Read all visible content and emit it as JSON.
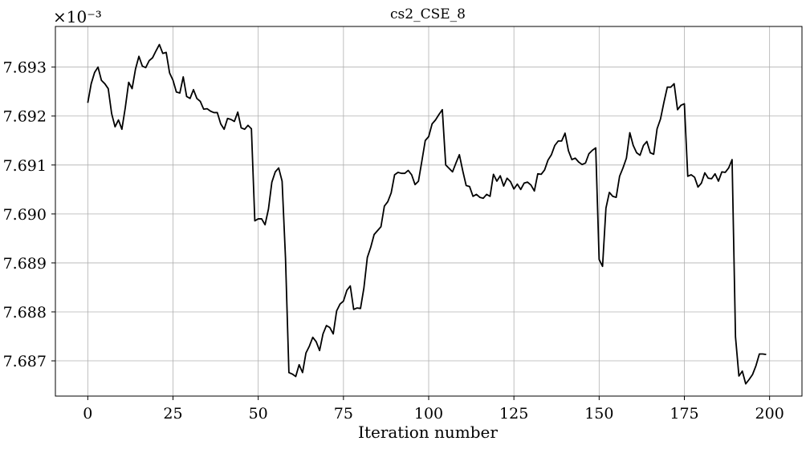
{
  "chart_data": {
    "type": "line",
    "title": "cs2_CSE_8",
    "xlabel": "Iteration number",
    "ylabel": "",
    "y_scale_label": "×10⁻³",
    "xlim": [
      -9.5,
      209.5
    ],
    "ylim": [
      7.68628,
      7.69383
    ],
    "xticks": [
      0,
      25,
      50,
      75,
      100,
      125,
      150,
      175,
      200
    ],
    "xtick_labels": [
      "0",
      "25",
      "50",
      "75",
      "100",
      "125",
      "150",
      "175",
      "200"
    ],
    "yticks": [
      7.687,
      7.688,
      7.689,
      7.69,
      7.691,
      7.692,
      7.693
    ],
    "ytick_labels": [
      "7.687",
      "7.688",
      "7.689",
      "7.690",
      "7.691",
      "7.692",
      "7.693"
    ],
    "grid": true,
    "series": [
      {
        "color": "#000000",
        "x_start": 0,
        "x_step": 1,
        "values": [
          7.69227,
          7.69266,
          7.69289,
          7.693,
          7.69273,
          7.69266,
          7.69256,
          7.69205,
          7.69178,
          7.69192,
          7.69173,
          7.69217,
          7.69269,
          7.69256,
          7.69296,
          7.69322,
          7.69302,
          7.69299,
          7.69313,
          7.69319,
          7.69333,
          7.69346,
          7.69328,
          7.6933,
          7.69288,
          7.69273,
          7.69249,
          7.69247,
          7.6928,
          7.6924,
          7.69236,
          7.69254,
          7.69236,
          7.6923,
          7.69214,
          7.69215,
          7.6921,
          7.69207,
          7.69207,
          7.69184,
          7.69173,
          7.69195,
          7.69193,
          7.69189,
          7.69208,
          7.69176,
          7.69173,
          7.69181,
          7.69174,
          7.68986,
          7.6899,
          7.6899,
          7.68978,
          7.6901,
          7.69065,
          7.69086,
          7.69094,
          7.69067,
          7.6891,
          7.68676,
          7.68673,
          7.68668,
          7.68692,
          7.68676,
          7.68716,
          7.6873,
          7.68748,
          7.68739,
          7.68721,
          7.68755,
          7.68772,
          7.68768,
          7.68755,
          7.68802,
          7.68816,
          7.68822,
          7.68844,
          7.68853,
          7.68805,
          7.68808,
          7.68807,
          7.68849,
          7.68911,
          7.68932,
          7.68958,
          7.68966,
          7.68974,
          7.69016,
          7.69025,
          7.69043,
          7.6908,
          7.69085,
          7.69083,
          7.69083,
          7.69089,
          7.6908,
          7.6906,
          7.69067,
          7.69108,
          7.6915,
          7.69158,
          7.69184,
          7.69192,
          7.69203,
          7.69213,
          7.691,
          7.69093,
          7.69086,
          7.69104,
          7.69121,
          7.69088,
          7.69058,
          7.69056,
          7.69036,
          7.6904,
          7.69034,
          7.69032,
          7.6904,
          7.69036,
          7.69081,
          7.69067,
          7.69078,
          7.69057,
          7.69073,
          7.69066,
          7.69051,
          7.69061,
          7.6905,
          7.69063,
          7.69065,
          7.69059,
          7.69047,
          7.69082,
          7.69081,
          7.6909,
          7.6911,
          7.69121,
          7.6914,
          7.69149,
          7.69149,
          7.69165,
          7.69129,
          7.69111,
          7.69114,
          7.69106,
          7.69101,
          7.69104,
          7.69123,
          7.6913,
          7.69135,
          7.68907,
          7.68893,
          7.69012,
          7.69044,
          7.69036,
          7.69034,
          7.69077,
          7.69094,
          7.69114,
          7.69166,
          7.6914,
          7.69125,
          7.6912,
          7.6914,
          7.69148,
          7.69125,
          7.69122,
          7.69174,
          7.69194,
          7.69228,
          7.69259,
          7.69259,
          7.69266,
          7.69213,
          7.69222,
          7.69225,
          7.69077,
          7.6908,
          7.69075,
          7.69055,
          7.69063,
          7.69084,
          7.69073,
          7.69072,
          7.69082,
          7.69067,
          7.69086,
          7.69085,
          7.69094,
          7.69111,
          7.68749,
          7.68669,
          7.68679,
          7.68653,
          7.68662,
          7.68672,
          7.6869,
          7.68714,
          7.68714,
          7.68713
        ]
      }
    ]
  }
}
